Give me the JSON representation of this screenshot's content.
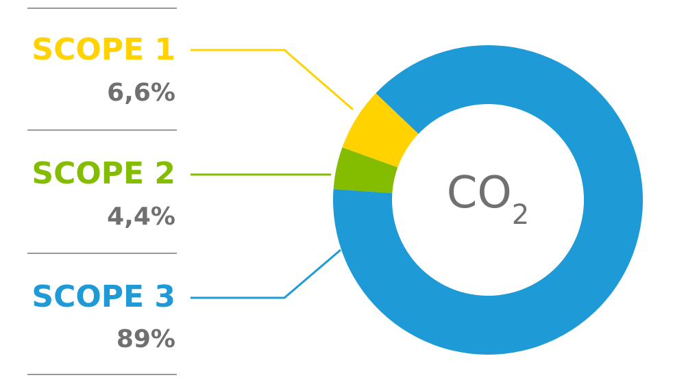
{
  "chart_data": {
    "type": "pie",
    "categories": [
      "SCOPE 1",
      "SCOPE 2",
      "SCOPE 3"
    ],
    "values": [
      6.6,
      4.4,
      89
    ],
    "value_labels": [
      "6,6%",
      "4,4%",
      "89%"
    ],
    "colors": [
      "#FFD200",
      "#84BD00",
      "#1E9AD6"
    ],
    "center_label": {
      "text": "CO",
      "subscript": "2"
    }
  }
}
